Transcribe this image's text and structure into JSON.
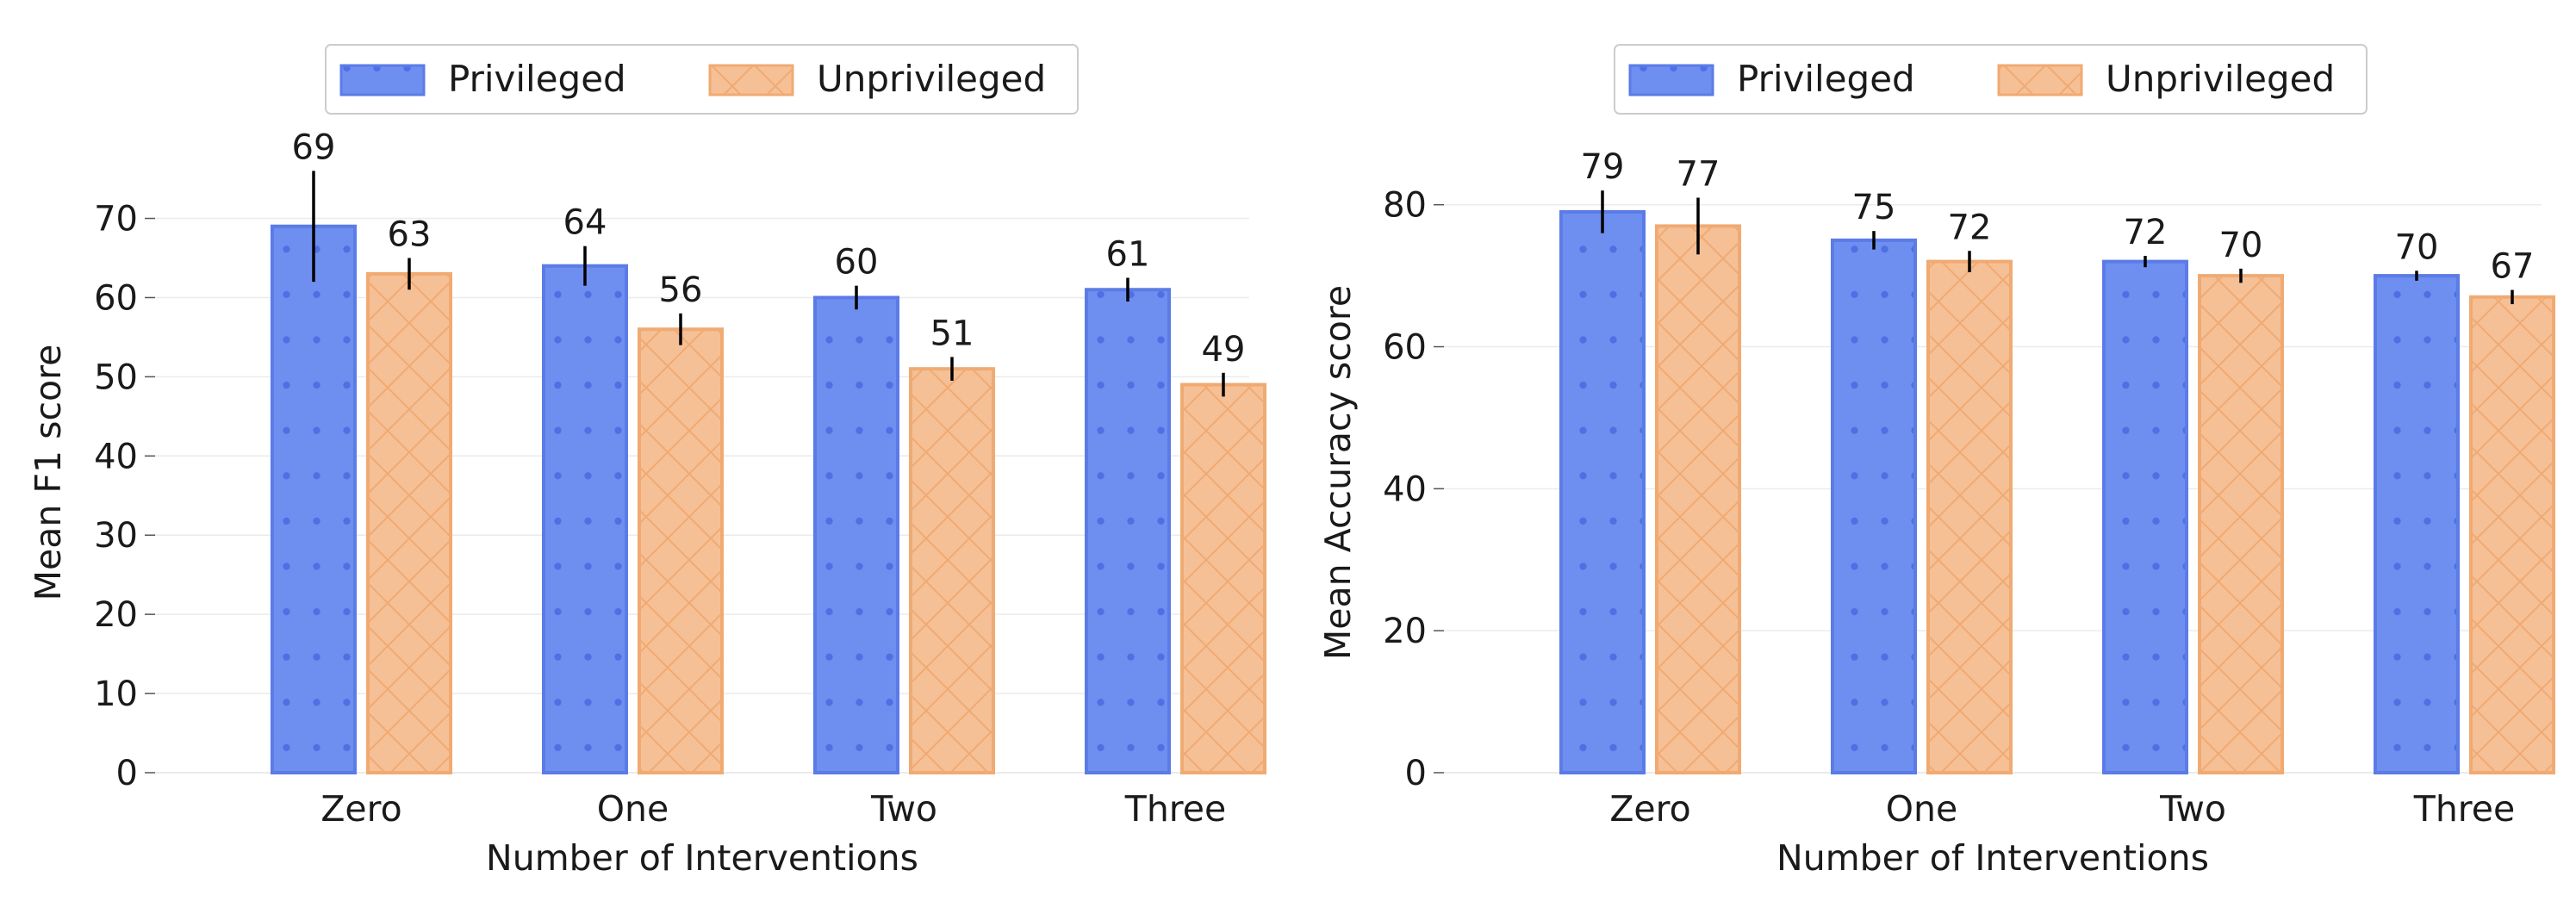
{
  "figure": {
    "colors": {
      "privileged_fill": "#6f8ff0",
      "privileged_edge": "#5b7be6",
      "unprivileged_fill": "#f6c096",
      "unprivileged_edge": "#f0aa72",
      "error_bar": "#000000",
      "grid": "#ebebeb"
    }
  },
  "chart_data": [
    {
      "type": "bar",
      "title": "",
      "xlabel": "Number of Interventions",
      "ylabel": "Mean F1 score",
      "categories": [
        "Zero",
        "One",
        "Two",
        "Three"
      ],
      "ylim": [
        0,
        78
      ],
      "yticks": [
        0,
        10,
        20,
        30,
        40,
        50,
        60,
        70
      ],
      "grid": "horizontal",
      "legend_position": "top-center",
      "series": [
        {
          "name": "Privileged",
          "values": [
            69,
            64,
            60,
            61
          ],
          "errors": [
            7,
            2.5,
            1.5,
            1.5
          ],
          "pattern": "dots"
        },
        {
          "name": "Unprivileged",
          "values": [
            63,
            56,
            51,
            49
          ],
          "errors": [
            2,
            2,
            1.5,
            1.5
          ],
          "pattern": "crosshatch"
        }
      ]
    },
    {
      "type": "bar",
      "title": "",
      "xlabel": "Number of Interventions",
      "ylabel": "Mean Accuracy score",
      "categories": [
        "Zero",
        "One",
        "Two",
        "Three"
      ],
      "ylim": [
        0,
        87
      ],
      "yticks": [
        0,
        20,
        40,
        60,
        80
      ],
      "grid": "horizontal",
      "legend_position": "top-center",
      "series": [
        {
          "name": "Privileged",
          "values": [
            79,
            75,
            72,
            70
          ],
          "errors": [
            3,
            1.3,
            0.8,
            0.7
          ],
          "pattern": "dots"
        },
        {
          "name": "Unprivileged",
          "values": [
            77,
            72,
            70,
            67
          ],
          "errors": [
            4,
            1.5,
            1,
            1
          ],
          "pattern": "crosshatch"
        }
      ]
    }
  ]
}
